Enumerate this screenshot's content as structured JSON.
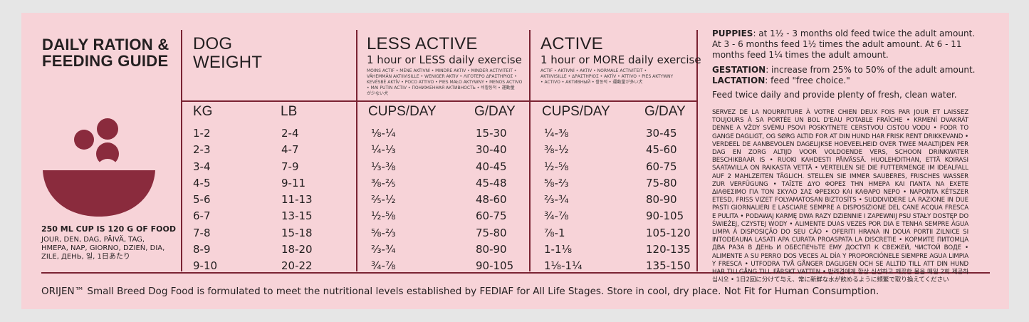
{
  "guide": {
    "title_line1": "DAILY RATION &",
    "title_line2": "FEEDING GUIDE",
    "cup_note": "250 ML CUP IS 120 G OF FOOD",
    "cup_translations": [
      "JOUR, DEN, DAG, PÄIVÄ, TAG,",
      "HMEPA, NAP, GIORNO, DZIEŃ, DIA,",
      "ZILE, ДЕНЬ, 일, 1日あたり"
    ]
  },
  "columns": {
    "weight": {
      "title_line1": "DOG",
      "title_line2": "WEIGHT",
      "kg_label": "KG",
      "lb_label": "LB"
    },
    "less_active": {
      "title": "LESS ACTIVE",
      "subtitle": "1 hour or LESS daily exercise",
      "translations": [
        "MOINS ACTIF • MÉNE AKTIVNÍ • MINDRE AKTIV • MINDER ACTIVITEIT •",
        "VÄHEMMÄN AKTIIVISILLE • WENIGER AKTIV • ΛΙΓΟΤΕΡΟ ΔΡΑΣΤΗΡΙΟΣ •",
        "KEVÉSBÉ AKTÍV • POCO ATTIVO • PIES MAŁO AKTYWNY • MENOS ACTIVO",
        "• MAI PUTIN ACTIV • ПОНИЖЕННАЯ АКТИВНОСТЬ • 비활동적 • 運動量",
        "が少ない犬"
      ],
      "cups_label": "CUPS/DAY",
      "grams_label": "G/DAY"
    },
    "active": {
      "title": "ACTIVE",
      "subtitle": "1 hour or MORE daily exercise",
      "translations": [
        "ACTIF • AKTIVNÍ • AKTIV • NORMALE ACTIVITEIT •",
        "AKTIIVISILLE • ΔΡΑΣΤΗΡΙΟΣ • AKTÍV • ATTIVO • PIES AKTYWNY",
        "• ACTIVO • АКТИВНЫЙ • 활동적 • 運動量が多い犬"
      ],
      "cups_label": "CUPS/DAY",
      "grams_label": "G/DAY"
    }
  },
  "rows": [
    {
      "kg": "1-2",
      "lb": "2-4",
      "less_cups": "⅛-¼",
      "less_g": "15-30",
      "active_cups": "¼-⅜",
      "active_g": "30-45"
    },
    {
      "kg": "2-3",
      "lb": "4-7",
      "less_cups": "¼-⅓",
      "less_g": "30-40",
      "active_cups": "⅜-½",
      "active_g": "45-60"
    },
    {
      "kg": "3-4",
      "lb": "7-9",
      "less_cups": "⅓-⅜",
      "less_g": "40-45",
      "active_cups": "½-⅝",
      "active_g": "60-75"
    },
    {
      "kg": "4-5",
      "lb": "9-11",
      "less_cups": "⅜-⅖",
      "less_g": "45-48",
      "active_cups": "⅝-⅔",
      "active_g": "75-80"
    },
    {
      "kg": "5-6",
      "lb": "11-13",
      "less_cups": "⅖-½",
      "less_g": "48-60",
      "active_cups": "⅔-¾",
      "active_g": "80-90"
    },
    {
      "kg": "6-7",
      "lb": "13-15",
      "less_cups": "½-⅝",
      "less_g": "60-75",
      "active_cups": "¾-⅞",
      "active_g": "90-105"
    },
    {
      "kg": "7-8",
      "lb": "15-18",
      "less_cups": "⅝-⅔",
      "less_g": "75-80",
      "active_cups": "⅞-1",
      "active_g": "105-120"
    },
    {
      "kg": "8-9",
      "lb": "18-20",
      "less_cups": "⅔-¾",
      "less_g": "80-90",
      "active_cups": "1-1⅛",
      "active_g": "120-135"
    },
    {
      "kg": "9-10",
      "lb": "20-22",
      "less_cups": "¾-⅞",
      "less_g": "90-105",
      "active_cups": "1⅛-1¼",
      "active_g": "135-150"
    }
  ],
  "notes": {
    "puppies_label": "PUPPIES",
    "puppies_text": ": at 1½ - 3 months old feed twice the adult amount. At 3 - 6 months feed 1½ times the adult amount. At 6 - 11 months feed 1¼ times the adult amount.",
    "gestation_label": "GESTATION",
    "gestation_text": ": increase from 25% to 50% of the adult amount.",
    "lactation_label": "LACTATION",
    "lactation_text": ": feed \"free choice.\"",
    "feed_twice": "Feed twice daily and provide plenty of fresh, clean water.",
    "multilingual": "SERVEZ DE LA NOURRITURE À VOTRE CHIEN DEUX FOIS PAR JOUR ET LAISSEZ TOUJOURS À SA PORTÉE UN BOL D'EAU POTABLE FRAÎCHE • KRMENÍ DVAKRÁT DENNE A VŽDY SVÉMU PSOVI POSKYTNETE CERSTVOU CISTOU VODU • FODR TO GANGE DAGLIGT, OG SØRG ALTID FOR AT DIN HUND HAR FRISK RENT DRIKKEVAND • VERDEEL DE AANBEVOLEN DAGELIJKSE HOEVEELHEID OVER TWEE MAALTIJDEN PER DAG EN ZORG ALTIJD VOOR VOLDOENDE VERS, SCHOON DRINKWATER BESCHIKBAAR IS • RUOKI KAHDESTI PÄIVÄSSÄ. HUOLEHDITHAN, ETTÄ KOIRASI SAATAVILLA ON RAIKASTA VETTÄ • VERTEILEN SIE DIE FUTTERMENGE IM IDEALFALL AUF 2 MAHLZEITEN TÄGLICH. STELLEN SIE IMMER SAUBERES, FRISCHES WASSER ZUR VERFÜGUNG • ΤΑΪΣΤΕ ΔΥΟ ΦΟΡΕΣ ΤΗΝ ΗΜΕΡΑ ΚΑΙ ΠΑΝΤΑ ΝΑ ΕΧΕΤΕ ΔΙΑΘΕΣΙΜΟ ΓΙΑ ΤΟΝ ΣΚΥΛΟ ΣΑΣ ΦΡΕΣΚΟ ΚΑΙ ΚΑΘΑΡΟ ΝΕΡΟ • NAPONTA KÉTSZER ETESD, FRISS VIZET FOLYAMATOSAN BIZTOSÍTS • SUDDIVIDERE LA RAZIONE IN DUE PASTI GIORNALIERI E LASCIARE SEMPRE A DISPOSIZIONE DEL CANE ACQUA FRESCA E PULITA • PODAWAJ KARMĘ DWA RAZY DZIENNIE I ZAPEWNIJ PSU STAŁY DOSTĘP DO ŚWIEŻEJ, CZYSTEJ WODY • ALIMENTE DUAS VEZES POR DIA E TENHA SEMPRE ÁGUA LIMPA À DISPOSIÇÃO DO SEU CÃO • OFERITI HRANA IN DOUA PORTII ZILNICE SI INTODEAUNA LASATI APA CURATA PROASPATA LA DISCRETIE • КОРМИТЕ ПИТОМЦА ДВА РАЗА В ДЕНЬ И ОБЕСПЕЧЬТЕ ЕМУ ДОСТУП К СВЕЖЕЙ, ЧИСТОЙ ВОДЕ • ALIMENTE A SU PERRO DOS VECES AL DÍA Y PROPORCIÓNELE SIEMPRE AGUA LIMPIA Y FRESCA • UTFODRA TVÅ GÅNGER DAGLIGEN OCH SE ALLTID TILL ATT DIN HUND HAR TILLGÅNG TILL FÄRSKT VATTEN • 반려견에게 항상 신선하고 깨끗한 물을 매일 2회 제공하십시오 • 1日2回に分けて与え、常に新鮮な水が飲めるように频繁で取り換えてください"
  },
  "footer": "ORIJEN™ Small Breed Dog Food is formulated to meet the nutritional levels established by FEDIAF for All Life Stages. Store in cool, dry place. Not Fit for Human Consumption.",
  "colors": {
    "panel": "#f7d3d8",
    "accent": "#7a2333",
    "page": "#e6e6e6"
  }
}
